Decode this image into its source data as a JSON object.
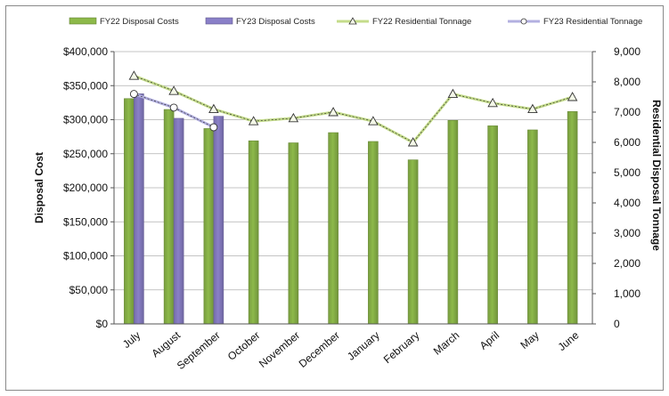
{
  "chart_data": {
    "type": "bar",
    "categories": [
      "July",
      "August",
      "September",
      "October",
      "November",
      "December",
      "January",
      "February",
      "March",
      "April",
      "May",
      "June"
    ],
    "series": [
      {
        "name": "FY22 Disposal Costs",
        "kind": "bar",
        "axis": "left",
        "color": "#8db94a",
        "values": [
          331000,
          315000,
          287000,
          269000,
          266000,
          281000,
          268000,
          241000,
          299000,
          291000,
          285000,
          312000
        ]
      },
      {
        "name": "FY23 Disposal Costs",
        "kind": "bar",
        "axis": "left",
        "color": "#8a80c8",
        "values": [
          338000,
          302000,
          305000,
          null,
          null,
          null,
          null,
          null,
          null,
          null,
          null,
          null
        ]
      },
      {
        "name": "FY22 Residential Tonnage",
        "kind": "line",
        "axis": "right",
        "color": "#c4dc8a",
        "marker": "triangle",
        "values": [
          8200,
          7700,
          7100,
          6700,
          6800,
          7000,
          6700,
          6000,
          7600,
          7300,
          7100,
          7500
        ]
      },
      {
        "name": "FY23 Residential Tonnage",
        "kind": "line",
        "axis": "right",
        "color": "#b3b0e0",
        "marker": "circle",
        "values": [
          7600,
          7150,
          6500,
          null,
          null,
          null,
          null,
          null,
          null,
          null,
          null,
          null
        ]
      }
    ],
    "left_axis": {
      "label": "Disposal Cost",
      "min": 0,
      "max": 400000,
      "step": 50000,
      "tick_labels": [
        "$0",
        "$50,000",
        "$100,000",
        "$150,000",
        "$200,000",
        "$250,000",
        "$300,000",
        "$350,000",
        "$400,000"
      ]
    },
    "right_axis": {
      "label": "Residential Disposal Tonnage",
      "min": 0,
      "max": 9000,
      "step": 1000,
      "tick_labels": [
        "0",
        "1,000",
        "2,000",
        "3,000",
        "4,000",
        "5,000",
        "6,000",
        "7,000",
        "8,000",
        "9,000"
      ]
    },
    "grid": true,
    "legend_position": "top"
  }
}
